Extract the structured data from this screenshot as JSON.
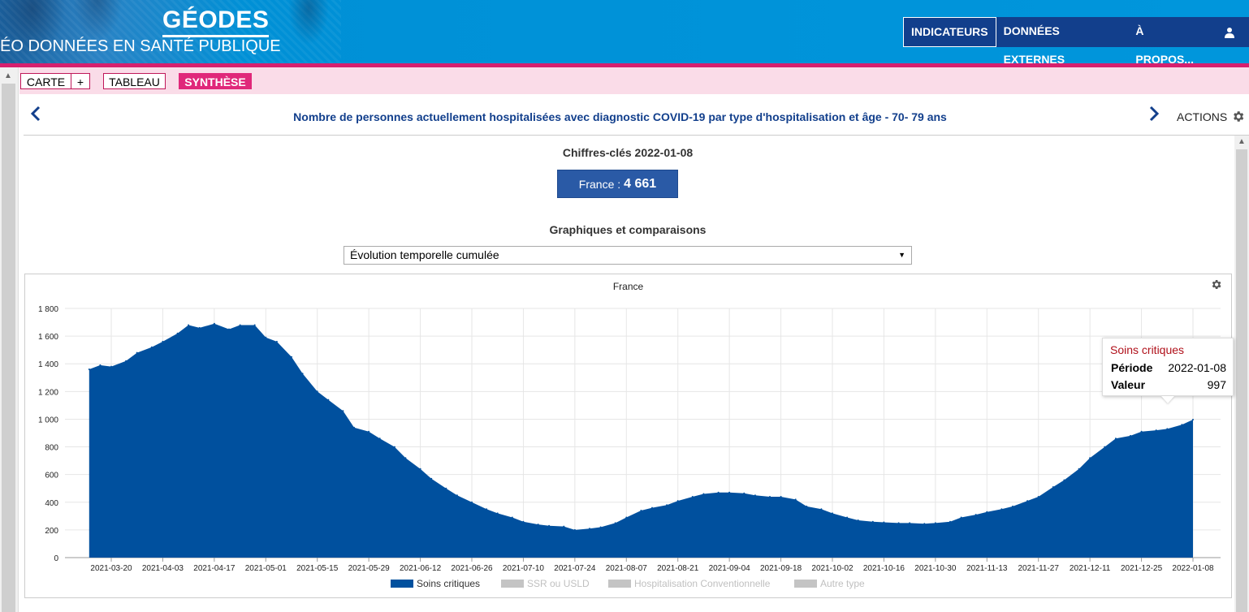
{
  "header": {
    "logo_title": "GÉODES",
    "logo_subtitle": "ÉO DONNÉES EN SANTÉ PUBLIQUE",
    "nav": [
      "INDICATEURS",
      "DONNÉES EXTERNES",
      "À PROPOS..."
    ],
    "active_nav": "INDICATEURS",
    "user_icon": "user-icon"
  },
  "toolbar": {
    "tabs": [
      "CARTE",
      "+",
      "TABLEAU",
      "SYNTHÈSE"
    ],
    "active_tab": "SYNTHÈSE"
  },
  "indicator": {
    "title": "Nombre de personnes actuellement hospitalisées avec diagnostic COVID-19 par type d'hospitalisation et âge - 70- 79 ans",
    "actions_label": "ACTIONS"
  },
  "key_figures": {
    "title": "Chiffres-clés 2022-01-08",
    "label": "France : ",
    "value": "4 661"
  },
  "comparisons": {
    "title": "Graphiques et comparaisons",
    "selected_view": "Évolution temporelle cumulée"
  },
  "colors": {
    "accent": "#d6206e",
    "series_active": "#00509e",
    "series_inactive": "#c4c4c4",
    "nav_background": "#123f8c"
  },
  "chart_data": {
    "type": "area",
    "title": "France",
    "xlabel": "",
    "ylabel": "",
    "ylim": [
      0,
      1800
    ],
    "yticks": [
      0,
      200,
      400,
      600,
      800,
      1000,
      1200,
      1400,
      1600,
      1800
    ],
    "ytick_labels": [
      "0",
      "200",
      "400",
      "600",
      "800",
      "1 000",
      "1 200",
      "1 400",
      "1 600",
      "1 800"
    ],
    "xtick_labels": [
      "2021-03-20",
      "2021-04-03",
      "2021-04-17",
      "2021-05-01",
      "2021-05-15",
      "2021-05-29",
      "2021-06-12",
      "2021-06-26",
      "2021-07-10",
      "2021-07-24",
      "2021-08-07",
      "2021-08-21",
      "2021-09-04",
      "2021-09-18",
      "2021-10-02",
      "2021-10-16",
      "2021-10-30",
      "2021-11-13",
      "2021-11-27",
      "2021-12-11",
      "2021-12-25",
      "2022-01-08"
    ],
    "grid": true,
    "legend_position": "bottom",
    "series": [
      {
        "name": "Soins critiques",
        "active": true,
        "x": [
          "2021-03-14",
          "2021-03-17",
          "2021-03-20",
          "2021-03-24",
          "2021-03-27",
          "2021-03-31",
          "2021-04-03",
          "2021-04-07",
          "2021-04-10",
          "2021-04-13",
          "2021-04-17",
          "2021-04-21",
          "2021-04-24",
          "2021-04-28",
          "2021-05-01",
          "2021-05-04",
          "2021-05-08",
          "2021-05-11",
          "2021-05-15",
          "2021-05-18",
          "2021-05-22",
          "2021-05-25",
          "2021-05-29",
          "2021-06-01",
          "2021-06-05",
          "2021-06-08",
          "2021-06-12",
          "2021-06-15",
          "2021-06-19",
          "2021-06-22",
          "2021-06-26",
          "2021-06-30",
          "2021-07-03",
          "2021-07-07",
          "2021-07-10",
          "2021-07-14",
          "2021-07-17",
          "2021-07-21",
          "2021-07-24",
          "2021-07-28",
          "2021-07-31",
          "2021-08-04",
          "2021-08-07",
          "2021-08-11",
          "2021-08-14",
          "2021-08-18",
          "2021-08-21",
          "2021-08-25",
          "2021-08-28",
          "2021-09-01",
          "2021-09-04",
          "2021-09-08",
          "2021-09-11",
          "2021-09-15",
          "2021-09-18",
          "2021-09-22",
          "2021-09-25",
          "2021-09-29",
          "2021-10-02",
          "2021-10-06",
          "2021-10-09",
          "2021-10-13",
          "2021-10-16",
          "2021-10-20",
          "2021-10-23",
          "2021-10-27",
          "2021-10-30",
          "2021-11-03",
          "2021-11-06",
          "2021-11-10",
          "2021-11-13",
          "2021-11-17",
          "2021-11-20",
          "2021-11-24",
          "2021-11-27",
          "2021-12-01",
          "2021-12-04",
          "2021-12-08",
          "2021-12-11",
          "2021-12-15",
          "2021-12-18",
          "2021-12-22",
          "2021-12-25",
          "2021-12-29",
          "2022-01-01",
          "2022-01-05",
          "2022-01-08"
        ],
        "values": [
          1360,
          1390,
          1380,
          1420,
          1480,
          1520,
          1560,
          1620,
          1680,
          1660,
          1690,
          1650,
          1680,
          1680,
          1590,
          1560,
          1450,
          1330,
          1200,
          1140,
          1060,
          940,
          910,
          860,
          800,
          720,
          640,
          570,
          500,
          450,
          400,
          350,
          320,
          290,
          260,
          240,
          230,
          225,
          200,
          210,
          220,
          250,
          290,
          340,
          360,
          380,
          410,
          440,
          460,
          470,
          470,
          465,
          450,
          440,
          440,
          420,
          370,
          350,
          320,
          290,
          270,
          260,
          255,
          250,
          250,
          245,
          250,
          260,
          290,
          310,
          330,
          350,
          370,
          410,
          440,
          510,
          560,
          640,
          720,
          800,
          860,
          880,
          910,
          920,
          930,
          960,
          997
        ]
      },
      {
        "name": "SSR ou USLD",
        "active": false
      },
      {
        "name": "Hospitalisation Conventionnelle",
        "active": false
      },
      {
        "name": "Autre type",
        "active": false
      }
    ]
  },
  "tooltip": {
    "series": "Soins critiques",
    "period_label": "Période",
    "period_value": "2022-01-08",
    "value_label": "Valeur",
    "value_value": "997"
  }
}
